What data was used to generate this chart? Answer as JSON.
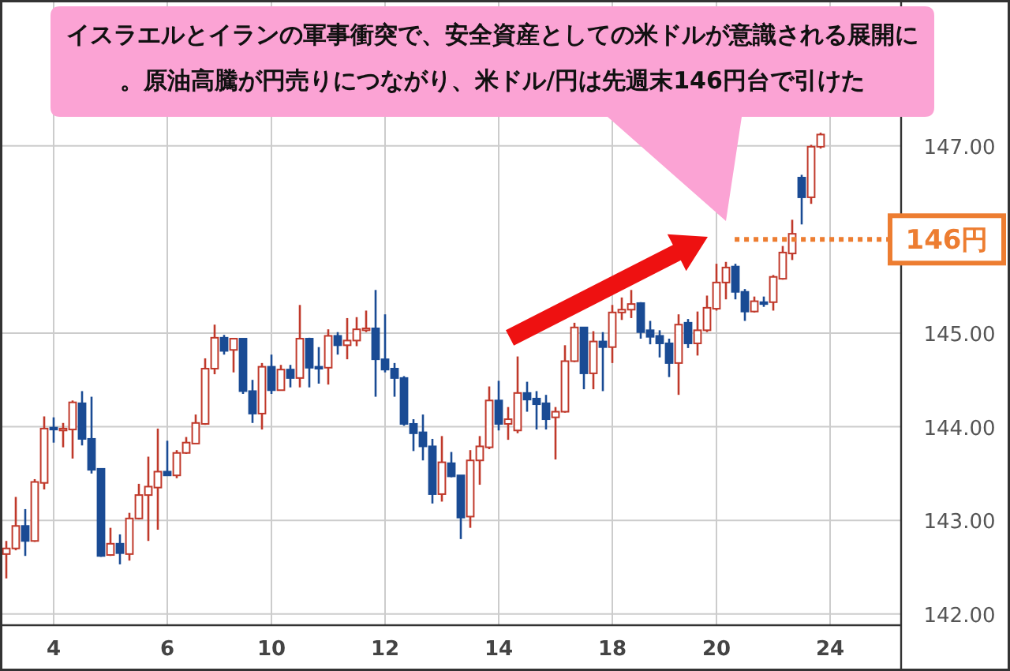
{
  "chart_data": {
    "type": "candlestick",
    "annotations": [
      "イスラエルとイランの軍事衝突で、安全資産としての米ドルが意識される展開に。原油高騰が円売りにつながり、米ドル/円は先週末146円台で引けた"
    ],
    "categories": [
      null,
      null,
      null,
      null,
      null,
      "4",
      null,
      null,
      null,
      null,
      null,
      null,
      null,
      null,
      null,
      null,
      null,
      "6",
      null,
      null,
      null,
      null,
      null,
      null,
      null,
      null,
      null,
      null,
      "10",
      null,
      null,
      null,
      null,
      null,
      null,
      null,
      null,
      null,
      null,
      null,
      "12",
      null,
      null,
      null,
      null,
      null,
      null,
      null,
      null,
      null,
      null,
      null,
      "14",
      null,
      null,
      null,
      null,
      null,
      null,
      null,
      null,
      null,
      null,
      null,
      "18",
      null,
      null,
      null,
      null,
      null,
      null,
      null,
      null,
      null,
      null,
      "20",
      null,
      null,
      null,
      null,
      null,
      null,
      null,
      null,
      null,
      null,
      null,
      "24",
      null,
      null,
      null,
      null,
      null,
      null,
      null
    ],
    "ohlc": [
      [
        142.64,
        142.78,
        142.38,
        142.7
      ],
      [
        142.7,
        143.25,
        142.68,
        142.94
      ],
      [
        142.94,
        143.12,
        142.62,
        142.78
      ],
      [
        142.78,
        143.44,
        142.77,
        143.41
      ],
      [
        143.4,
        144.11,
        143.33,
        143.98
      ],
      [
        143.99,
        144.1,
        143.83,
        143.97
      ],
      [
        143.97,
        144.04,
        143.78,
        143.98
      ],
      [
        143.97,
        144.28,
        143.66,
        144.26
      ],
      [
        144.25,
        144.38,
        143.8,
        143.87
      ],
      [
        143.87,
        144.32,
        143.5,
        143.54
      ],
      [
        143.55,
        143.55,
        142.61,
        142.62
      ],
      [
        142.63,
        142.92,
        142.62,
        142.75
      ],
      [
        142.75,
        142.85,
        142.53,
        142.65
      ],
      [
        142.64,
        143.08,
        142.57,
        143.02
      ],
      [
        143.02,
        143.39,
        143.01,
        143.27
      ],
      [
        143.27,
        143.68,
        142.78,
        143.36
      ],
      [
        143.35,
        143.98,
        142.9,
        143.52
      ],
      [
        143.52,
        143.85,
        143.48,
        143.48
      ],
      [
        143.48,
        143.75,
        143.45,
        143.72
      ],
      [
        143.72,
        143.89,
        143.71,
        143.83
      ],
      [
        143.82,
        144.13,
        143.82,
        144.04
      ],
      [
        144.03,
        144.73,
        144.02,
        144.62
      ],
      [
        144.62,
        145.09,
        144.56,
        144.95
      ],
      [
        144.95,
        144.98,
        144.77,
        144.81
      ],
      [
        144.82,
        144.94,
        144.58,
        144.94
      ],
      [
        144.94,
        144.94,
        144.35,
        144.38
      ],
      [
        144.38,
        144.5,
        144.04,
        144.14
      ],
      [
        144.14,
        144.68,
        143.97,
        144.64
      ],
      [
        144.64,
        144.77,
        144.35,
        144.39
      ],
      [
        144.39,
        144.66,
        144.39,
        144.61
      ],
      [
        144.61,
        144.66,
        144.42,
        144.52
      ],
      [
        144.52,
        145.3,
        144.42,
        144.94
      ],
      [
        144.94,
        144.95,
        144.42,
        144.63
      ],
      [
        144.64,
        144.85,
        144.46,
        144.63
      ],
      [
        144.63,
        145.04,
        144.45,
        144.97
      ],
      [
        144.97,
        145.01,
        144.77,
        144.87
      ],
      [
        144.87,
        145.16,
        144.72,
        144.92
      ],
      [
        144.92,
        145.17,
        144.86,
        145.04
      ],
      [
        145.03,
        145.24,
        145.01,
        145.05
      ],
      [
        145.05,
        145.46,
        144.32,
        144.72
      ],
      [
        144.72,
        145.2,
        144.58,
        144.61
      ],
      [
        144.62,
        144.68,
        144.32,
        144.52
      ],
      [
        144.52,
        144.54,
        144.01,
        144.03
      ],
      [
        144.03,
        144.08,
        143.74,
        143.93
      ],
      [
        143.94,
        144.13,
        143.64,
        143.79
      ],
      [
        143.79,
        143.87,
        143.18,
        143.28
      ],
      [
        143.28,
        143.9,
        143.2,
        143.62
      ],
      [
        143.61,
        143.73,
        143.46,
        143.47
      ],
      [
        143.48,
        143.48,
        142.8,
        143.03
      ],
      [
        143.04,
        143.75,
        142.92,
        143.64
      ],
      [
        143.64,
        143.9,
        143.38,
        143.79
      ],
      [
        143.78,
        144.43,
        143.76,
        144.28
      ],
      [
        144.28,
        144.49,
        143.96,
        144.03
      ],
      [
        144.03,
        144.21,
        143.86,
        144.08
      ],
      [
        143.96,
        144.75,
        143.93,
        144.36
      ],
      [
        144.36,
        144.48,
        144.16,
        144.29
      ],
      [
        144.3,
        144.38,
        143.97,
        144.24
      ],
      [
        144.25,
        144.34,
        143.97,
        144.08
      ],
      [
        144.1,
        144.21,
        143.65,
        144.16
      ],
      [
        144.16,
        144.87,
        144.15,
        144.7
      ],
      [
        144.7,
        145.11,
        144.69,
        145.06
      ],
      [
        145.06,
        145.06,
        144.4,
        144.57
      ],
      [
        144.57,
        145.02,
        144.4,
        144.91
      ],
      [
        144.91,
        145.01,
        144.38,
        144.85
      ],
      [
        144.85,
        145.3,
        144.68,
        145.22
      ],
      [
        145.22,
        145.38,
        145.14,
        145.25
      ],
      [
        145.25,
        145.46,
        145.16,
        145.31
      ],
      [
        145.32,
        145.33,
        144.94,
        145.01
      ],
      [
        145.03,
        145.13,
        144.88,
        144.96
      ],
      [
        144.97,
        145.03,
        144.74,
        144.89
      ],
      [
        144.89,
        144.94,
        144.53,
        144.68
      ],
      [
        144.68,
        145.2,
        144.34,
        145.09
      ],
      [
        145.11,
        145.15,
        144.84,
        144.89
      ],
      [
        144.89,
        145.23,
        144.76,
        145.03
      ],
      [
        145.03,
        145.4,
        145.01,
        145.27
      ],
      [
        145.26,
        145.74,
        145.24,
        145.54
      ],
      [
        145.54,
        145.76,
        145.36,
        145.7
      ],
      [
        145.71,
        145.74,
        145.36,
        145.44
      ],
      [
        145.44,
        145.47,
        145.13,
        145.23
      ],
      [
        145.23,
        145.39,
        145.22,
        145.34
      ],
      [
        145.33,
        145.39,
        145.28,
        145.32
      ],
      [
        145.33,
        145.62,
        145.24,
        145.6
      ],
      [
        145.58,
        145.93,
        145.57,
        145.86
      ],
      [
        145.85,
        146.21,
        145.78,
        146.06
      ],
      [
        146.66,
        146.69,
        146.16,
        146.45
      ],
      [
        146.45,
        147.01,
        146.38,
        146.99
      ],
      [
        146.99,
        147.14,
        146.97,
        147.12
      ],
      null,
      null,
      null,
      null,
      null,
      null,
      null,
      null
    ],
    "ylim": [
      141.88,
      148.54
    ],
    "yticks": [
      {
        "value": 142,
        "label": "142.00"
      },
      {
        "value": 143,
        "label": "143.00"
      },
      {
        "value": 144,
        "label": "144.00"
      },
      {
        "value": 145,
        "label": "145.00"
      },
      {
        "value": 147,
        "label": "147.00"
      }
    ],
    "grid": true,
    "ref_lines": [
      {
        "axis": "y",
        "value": 146,
        "label": "146円",
        "color": "#ed7d31",
        "line_style": "dotted"
      }
    ]
  }
}
